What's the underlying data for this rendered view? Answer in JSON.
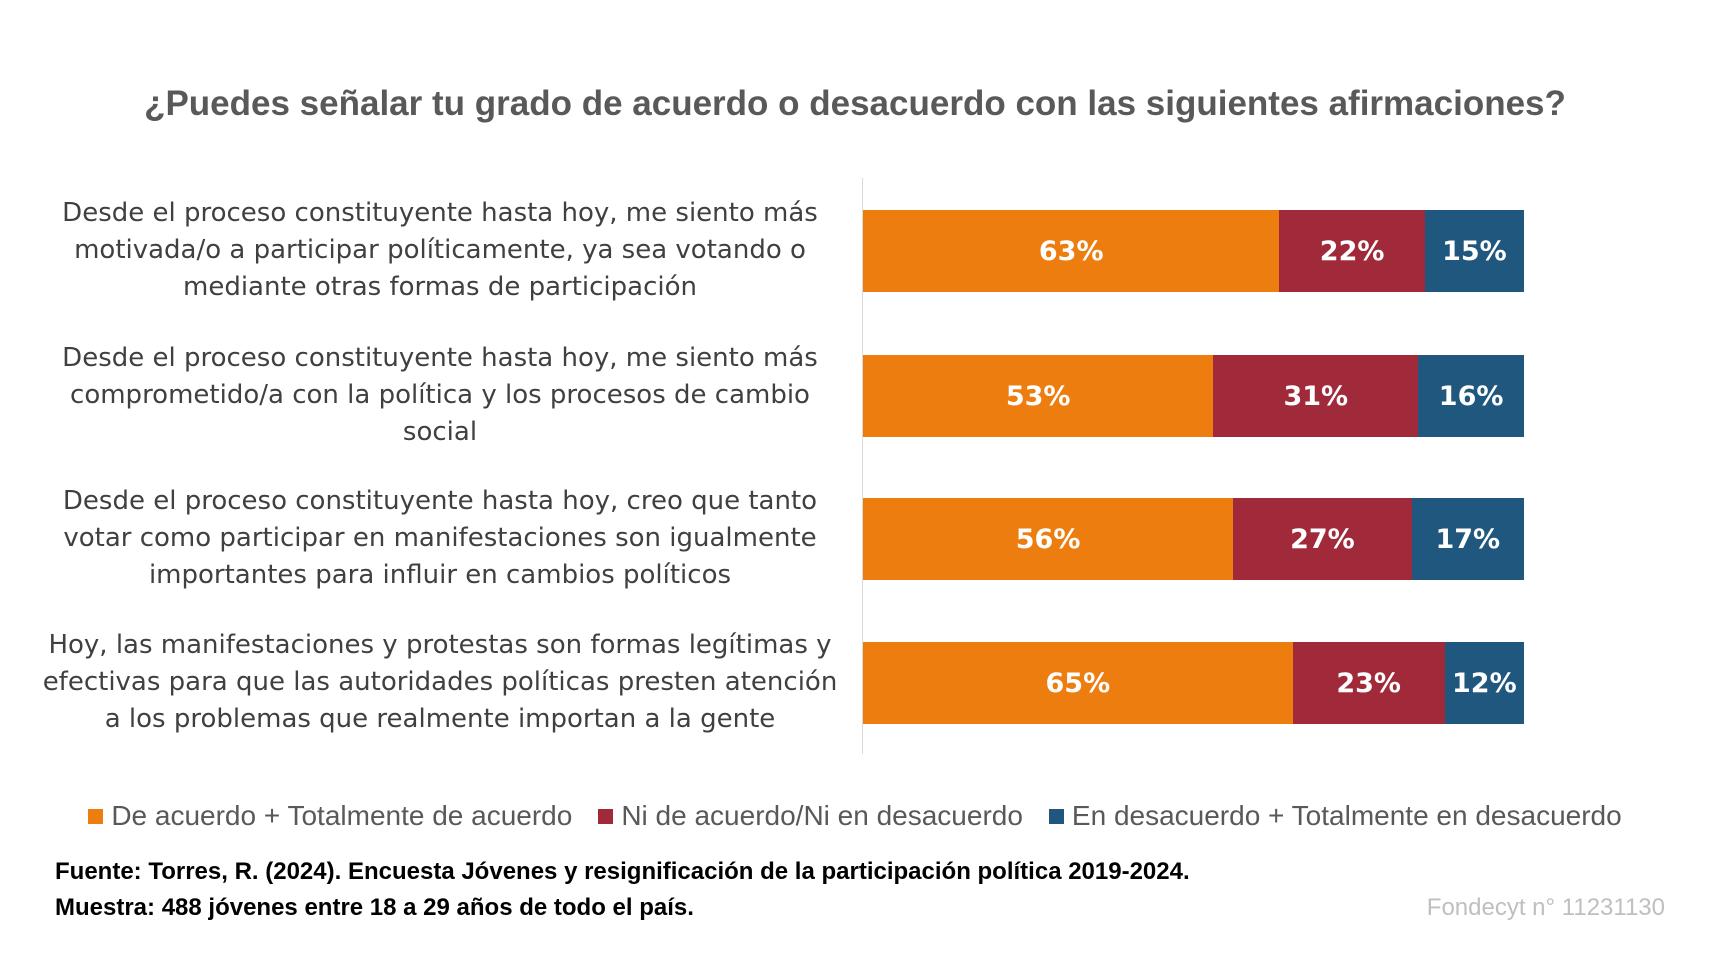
{
  "title": "¿Puedes señalar tu grado de acuerdo o desacuerdo con las siguientes afirmaciones?",
  "colors": {
    "acuerdo": "#ED7D0F",
    "neutral": "#A12A3A",
    "desacuerdo": "#1F577E"
  },
  "chart_data": {
    "type": "bar",
    "orientation": "horizontal",
    "stacked": true,
    "grid": false,
    "legend_position": "bottom",
    "categories": [
      [
        "Desde el proceso constituyente hasta hoy, me siento más",
        "motivada/o a participar políticamente, ya sea votando o",
        "mediante otras formas de participación"
      ],
      [
        "Desde el proceso constituyente hasta hoy, me siento más",
        "comprometido/a con la política y los procesos de cambio",
        "social"
      ],
      [
        "Desde el proceso constituyente hasta hoy, creo que tanto",
        "votar como participar en manifestaciones son igualmente",
        "importantes para influir en cambios políticos"
      ],
      [
        "Hoy, las manifestaciones y protestas son formas legítimas y",
        "efectivas para que las autoridades políticas presten atención",
        "a los problemas que realmente importan a la gente"
      ]
    ],
    "series": [
      {
        "name": "De acuerdo + Totalmente de acuerdo",
        "values": [
          63,
          53,
          56,
          65
        ],
        "labels": [
          "63%",
          "53%",
          "56%",
          "65%"
        ]
      },
      {
        "name": "Ni de acuerdo/Ni en desacuerdo",
        "values": [
          22,
          31,
          27,
          23
        ],
        "labels": [
          "22%",
          "31%",
          "27%",
          "23%"
        ]
      },
      {
        "name": "En desacuerdo + Totalmente en desacuerdo",
        "values": [
          15,
          16,
          17,
          12
        ],
        "labels": [
          "15%",
          "16%",
          "17%",
          "12%"
        ]
      }
    ],
    "xlim": [
      0,
      100
    ]
  },
  "source": {
    "line1": "Fuente: Torres, R. (2024). Encuesta Jóvenes y resignificación de la participación política 2019-2024.",
    "line2": "Muestra: 488 jóvenes entre 18 a 29 años de todo el país."
  },
  "grant": "Fondecyt n° 11231130"
}
